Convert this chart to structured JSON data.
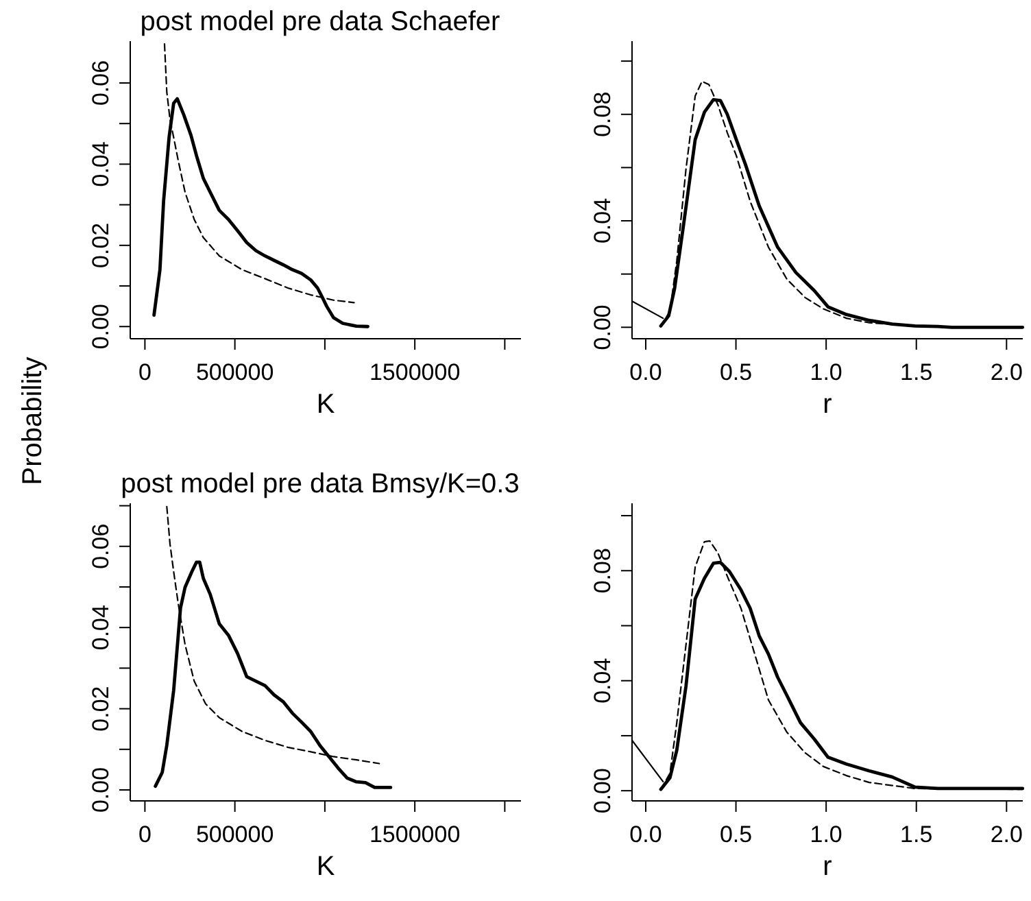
{
  "chart_data": [
    {
      "type": "line",
      "title": "post model pre data Schaefer",
      "xlabel": "K",
      "ylabel": "Probability",
      "xlim": [
        -81500,
        2090000
      ],
      "ylim": [
        -0.003,
        0.0703
      ],
      "xticks": [
        0,
        500000,
        {
          "value": 1000000,
          "label": null
        },
        1500000,
        {
          "value": 2000000,
          "label": null
        }
      ],
      "yticks": [
        {
          "value": 0,
          "label": "0.00"
        },
        {
          "value": 0.01,
          "label": null
        },
        {
          "value": 0.02,
          "label": "0.02"
        },
        {
          "value": 0.03,
          "label": null
        },
        {
          "value": 0.04,
          "label": "0.04"
        },
        {
          "value": 0.05,
          "label": null
        },
        {
          "value": 0.06,
          "label": "0.06"
        }
      ],
      "grid": false,
      "series": [
        {
          "color": "#000000",
          "line_style": "solid",
          "x": [
            50500,
            83500,
            103800,
            134300,
            159700,
            180000,
            215500,
            256100,
            286600,
            324700,
            362700,
            413500,
            464300,
            515100,
            565900,
            616600,
            667400,
            718200,
            769000,
            819700,
            870500,
            921300,
            959400,
            984800,
            1010100,
            1048200,
            1099000,
            1175200,
            1238600
          ],
          "values": [
            0.0028,
            0.014,
            0.0309,
            0.0466,
            0.055,
            0.0561,
            0.0522,
            0.0471,
            0.0421,
            0.0365,
            0.0331,
            0.0286,
            0.0264,
            0.0236,
            0.0207,
            0.0187,
            0.0174,
            0.0163,
            0.0152,
            0.014,
            0.0131,
            0.0115,
            0.0095,
            0.0073,
            0.005,
            0.0022,
            0.0008,
            0.0001,
            0.0
          ]
        },
        {
          "color": "#000000",
          "line_style": "dashed",
          "x": [
            108900,
            121600,
            139400,
            159700,
            185100,
            223100,
            273900,
            324700,
            413500,
            540500,
            667400,
            794400,
            921300,
            1048200,
            1162400
          ],
          "values": [
            0.0696,
            0.0578,
            0.051,
            0.0466,
            0.0409,
            0.0331,
            0.0264,
            0.0219,
            0.0174,
            0.014,
            0.0118,
            0.0095,
            0.0078,
            0.0065,
            0.0059
          ]
        }
      ]
    },
    {
      "type": "line",
      "xlabel": "r",
      "xlim": [
        -0.076,
        2.09
      ],
      "ylim": [
        -0.0043,
        0.1075
      ],
      "xticks": [
        {
          "value": 0,
          "label": "0.0"
        },
        0.5,
        {
          "value": 1,
          "label": "1.0"
        },
        1.5,
        {
          "value": 2,
          "label": "2.0"
        }
      ],
      "yticks": [
        {
          "value": 0,
          "label": "0.00"
        },
        {
          "value": 0.02,
          "label": null
        },
        {
          "value": 0.04,
          "label": "0.04"
        },
        {
          "value": 0.06,
          "label": null
        },
        {
          "value": 0.08,
          "label": "0.08"
        },
        {
          "value": 0.1,
          "label": null
        }
      ],
      "grid": false,
      "series": [
        {
          "color": "#000000",
          "line_style": "solid",
          "x": [
            0.0835,
            0.127,
            0.16,
            0.21,
            0.274,
            0.325,
            0.375,
            0.414,
            0.452,
            0.502,
            0.553,
            0.629,
            0.731,
            0.832,
            0.934,
            1.01,
            1.112,
            1.239,
            1.366,
            1.493,
            1.619,
            1.696,
            2.089
          ],
          "values": [
            0.0005,
            0.0043,
            0.0146,
            0.0387,
            0.0705,
            0.0808,
            0.0855,
            0.0852,
            0.08,
            0.0705,
            0.0611,
            0.0456,
            0.0301,
            0.0206,
            0.0138,
            0.0077,
            0.0048,
            0.0026,
            0.0012,
            0.0005,
            0.0003,
            0.0,
            0.0
          ]
        },
        {
          "color": "#000000",
          "line_style": "dashed",
          "x": [
            0.0835,
            0.134,
            0.172,
            0.223,
            0.274,
            0.312,
            0.35,
            0.401,
            0.452,
            0.502,
            0.579,
            0.68,
            0.782,
            0.883,
            0.985,
            1.112,
            1.239,
            1.493,
            1.746,
            2.089
          ],
          "values": [
            0.0005,
            0.006,
            0.0249,
            0.0594,
            0.0869,
            0.0924,
            0.0912,
            0.0834,
            0.0731,
            0.0645,
            0.0473,
            0.0301,
            0.0181,
            0.0112,
            0.0069,
            0.0034,
            0.0017,
            0.0005,
            0.0,
            0.0
          ]
        },
        {
          "color": "#000000",
          "line_style": "solid",
          "x": [
            -0.076,
            0.096
          ],
          "values": [
            0.0098,
            0.0034
          ]
        }
      ]
    },
    {
      "type": "line",
      "title": "post model pre data Bmsy/K=0.3",
      "xlabel": "K",
      "xlim": [
        -81500,
        2090000
      ],
      "ylim": [
        -0.0027,
        0.0706
      ],
      "xticks": [
        0,
        500000,
        {
          "value": 1000000,
          "label": null
        },
        1500000,
        {
          "value": 2000000,
          "label": null
        }
      ],
      "yticks": [
        {
          "value": 0,
          "label": "0.00"
        },
        {
          "value": 0.01,
          "label": null
        },
        {
          "value": 0.02,
          "label": "0.02"
        },
        {
          "value": 0.03,
          "label": null
        },
        {
          "value": 0.04,
          "label": "0.04"
        },
        {
          "value": 0.05,
          "label": null
        },
        {
          "value": 0.06,
          "label": "0.06"
        },
        {
          "value": 0.07,
          "label": null
        }
      ],
      "grid": false,
      "series": [
        {
          "color": "#000000",
          "line_style": "solid",
          "x": [
            58100,
            96200,
            121600,
            159700,
            197800,
            223100,
            261200,
            286600,
            304400,
            324700,
            362700,
            413500,
            464300,
            515100,
            565900,
            616600,
            667400,
            718200,
            769000,
            819700,
            870500,
            921300,
            972000,
            1022900,
            1073600,
            1124400,
            1175200,
            1225900,
            1276700,
            1365600
          ],
          "values": [
            0.0009,
            0.0043,
            0.011,
            0.0245,
            0.0448,
            0.0499,
            0.0538,
            0.0561,
            0.0561,
            0.0521,
            0.0482,
            0.0409,
            0.0381,
            0.0336,
            0.0279,
            0.0268,
            0.0257,
            0.0234,
            0.0217,
            0.0189,
            0.0167,
            0.0144,
            0.011,
            0.0082,
            0.0054,
            0.0029,
            0.002,
            0.0018,
            0.0006,
            0.0006
          ]
        },
        {
          "color": "#000000",
          "line_style": "dashed",
          "x": [
            121600,
            139400,
            159700,
            185100,
            223100,
            273900,
            337400,
            413500,
            540500,
            667400,
            794400,
            921300,
            1048200,
            1175200,
            1302100
          ],
          "values": [
            0.0698,
            0.0606,
            0.0538,
            0.0459,
            0.0358,
            0.0268,
            0.0212,
            0.0178,
            0.0144,
            0.0122,
            0.0105,
            0.0094,
            0.0082,
            0.0074,
            0.0065
          ]
        }
      ]
    },
    {
      "type": "line",
      "xlabel": "r",
      "xlim": [
        -0.076,
        2.09
      ],
      "ylim": [
        -0.0037,
        0.1045
      ],
      "xticks": [
        {
          "value": 0,
          "label": "0.0"
        },
        0.5,
        {
          "value": 1,
          "label": "1.0"
        },
        1.5,
        {
          "value": 2,
          "label": "2.0"
        }
      ],
      "yticks": [
        {
          "value": 0,
          "label": "0.00"
        },
        {
          "value": 0.02,
          "label": null
        },
        {
          "value": 0.04,
          "label": "0.04"
        },
        {
          "value": 0.06,
          "label": null
        },
        {
          "value": 0.08,
          "label": "0.08"
        },
        {
          "value": 0.1,
          "label": null
        }
      ],
      "grid": false,
      "series": [
        {
          "color": "#000000",
          "line_style": "solid",
          "x": [
            0.0835,
            0.134,
            0.172,
            0.223,
            0.274,
            0.325,
            0.375,
            0.414,
            0.464,
            0.528,
            0.579,
            0.629,
            0.68,
            0.731,
            0.782,
            0.858,
            0.934,
            1.01,
            1.112,
            1.239,
            1.366,
            1.493,
            1.619,
            2.089
          ],
          "values": [
            0.0005,
            0.0047,
            0.0147,
            0.038,
            0.0697,
            0.0772,
            0.0827,
            0.083,
            0.0797,
            0.073,
            0.0663,
            0.0563,
            0.0497,
            0.0413,
            0.0347,
            0.0247,
            0.0188,
            0.0122,
            0.0097,
            0.0072,
            0.005,
            0.0013,
            0.0008,
            0.0008
          ]
        },
        {
          "color": "#000000",
          "line_style": "dashed",
          "x": [
            0.0835,
            0.134,
            0.172,
            0.223,
            0.274,
            0.325,
            0.355,
            0.401,
            0.452,
            0.528,
            0.604,
            0.68,
            0.782,
            0.883,
            0.985,
            1.112,
            1.239,
            1.493,
            2.089
          ],
          "values": [
            0.0005,
            0.0063,
            0.0247,
            0.053,
            0.0813,
            0.0905,
            0.0908,
            0.0863,
            0.078,
            0.0663,
            0.0497,
            0.033,
            0.0213,
            0.0138,
            0.0088,
            0.0055,
            0.003,
            0.0008,
            0.0005
          ]
        },
        {
          "color": "#000000",
          "line_style": "solid",
          "x": [
            -0.076,
            0.096
          ],
          "values": [
            0.0183,
            0.0033
          ]
        }
      ]
    }
  ]
}
